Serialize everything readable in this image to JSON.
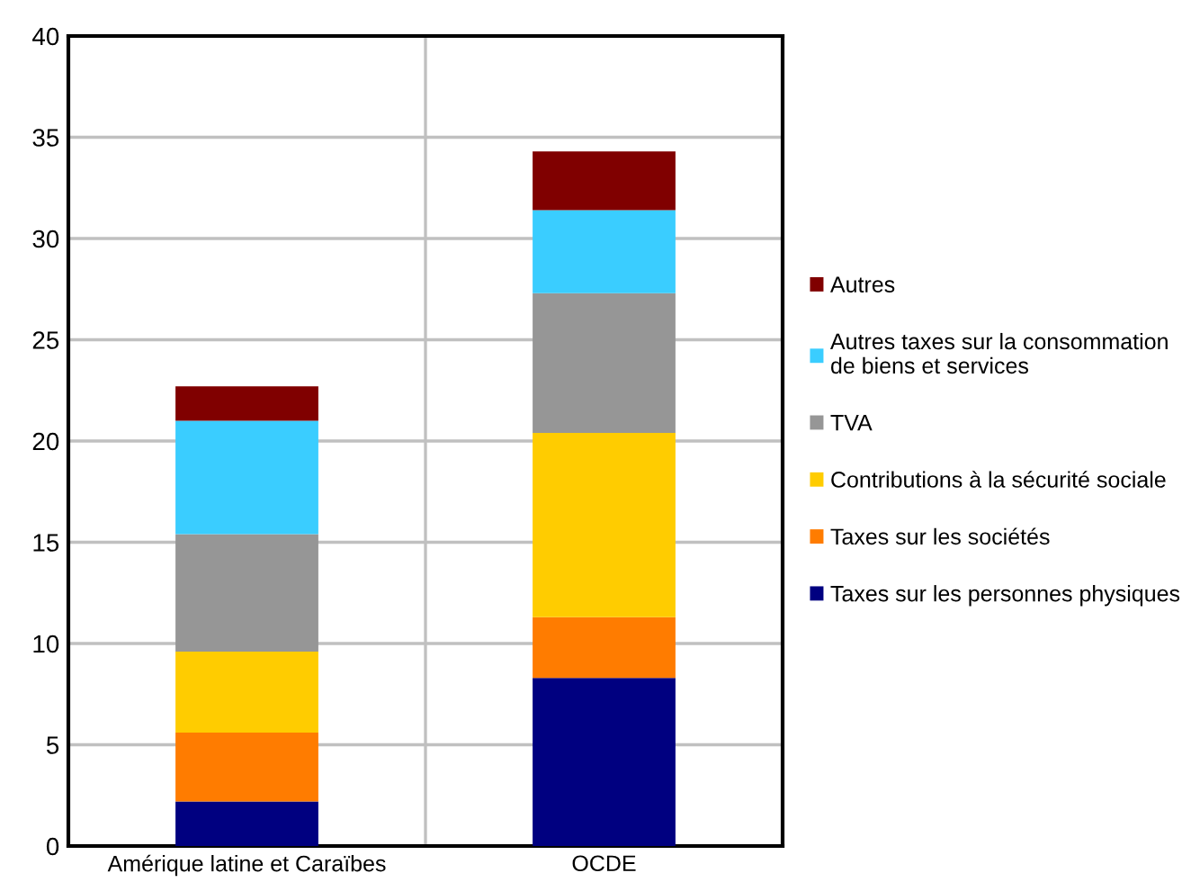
{
  "chart_data": {
    "type": "bar",
    "stacked": true,
    "categories": [
      "Amérique latine et Caraïbes",
      "OCDE"
    ],
    "series": [
      {
        "name": "Taxes sur les personnes physiques",
        "color": "#000080",
        "values": [
          2.2,
          8.3
        ]
      },
      {
        "name": "Taxes sur les sociétés",
        "color": "#ff7c00",
        "values": [
          3.4,
          3.0
        ]
      },
      {
        "name": "Contributions à la sécurité sociale",
        "color": "#ffcc00",
        "values": [
          4.0,
          9.1
        ]
      },
      {
        "name": "TVA",
        "color": "#969696",
        "values": [
          5.8,
          6.9
        ]
      },
      {
        "name": "Autres taxes sur la consommation\nde biens et services",
        "color": "#3acdff",
        "values": [
          5.6,
          4.1
        ]
      },
      {
        "name": "Autres",
        "color": "#800000",
        "values": [
          1.7,
          2.9
        ]
      }
    ],
    "ylim": [
      0,
      40
    ],
    "yticks": [
      0,
      5,
      10,
      15,
      20,
      25,
      30,
      35,
      40
    ],
    "grid": true,
    "legend": "right"
  }
}
